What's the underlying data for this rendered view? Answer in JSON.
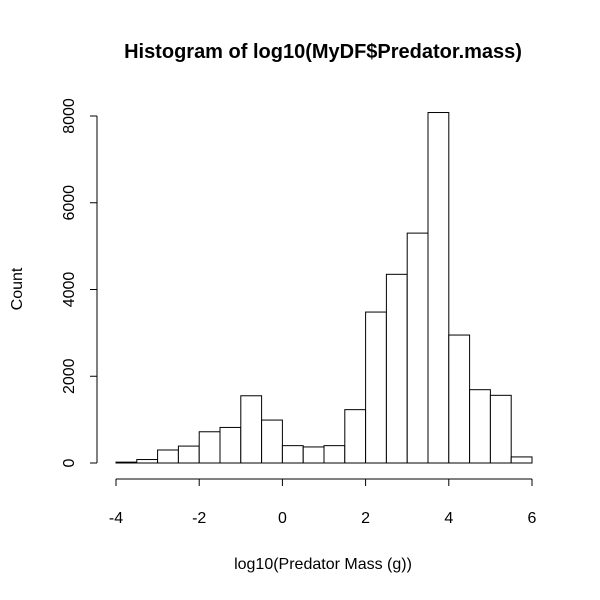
{
  "chart_data": {
    "type": "bar",
    "title": "Histogram of log10(MyDF$Predator.mass)",
    "xlabel": "log10(Predator Mass (g))",
    "ylabel": "Count",
    "xlim": [
      -4,
      6
    ],
    "ylim": [
      0,
      8000
    ],
    "x_ticks": [
      -4,
      -2,
      0,
      2,
      4,
      6
    ],
    "y_ticks": [
      0,
      2000,
      4000,
      6000,
      8000
    ],
    "bin_width": 0.5,
    "bins": [
      {
        "x0": -4.0,
        "x1": -3.5,
        "count": 20
      },
      {
        "x0": -3.5,
        "x1": -3.0,
        "count": 80
      },
      {
        "x0": -3.0,
        "x1": -2.5,
        "count": 300
      },
      {
        "x0": -2.5,
        "x1": -2.0,
        "count": 390
      },
      {
        "x0": -2.0,
        "x1": -1.5,
        "count": 720
      },
      {
        "x0": -1.5,
        "x1": -1.0,
        "count": 820
      },
      {
        "x0": -1.0,
        "x1": -0.5,
        "count": 1550
      },
      {
        "x0": -0.5,
        "x1": 0.0,
        "count": 990
      },
      {
        "x0": 0.0,
        "x1": 0.5,
        "count": 400
      },
      {
        "x0": 0.5,
        "x1": 1.0,
        "count": 370
      },
      {
        "x0": 1.0,
        "x1": 1.5,
        "count": 400
      },
      {
        "x0": 1.5,
        "x1": 2.0,
        "count": 1230
      },
      {
        "x0": 2.0,
        "x1": 2.5,
        "count": 3480
      },
      {
        "x0": 2.5,
        "x1": 3.0,
        "count": 4350
      },
      {
        "x0": 3.0,
        "x1": 3.5,
        "count": 5300
      },
      {
        "x0": 3.5,
        "x1": 4.0,
        "count": 8080
      },
      {
        "x0": 4.0,
        "x1": 4.5,
        "count": 2950
      },
      {
        "x0": 4.5,
        "x1": 5.0,
        "count": 1690
      },
      {
        "x0": 5.0,
        "x1": 5.5,
        "count": 1560
      },
      {
        "x0": 5.5,
        "x1": 6.0,
        "count": 140
      }
    ],
    "bar_fill": "#ffffff",
    "bar_stroke": "#000000",
    "grid": false,
    "legend": "none"
  }
}
